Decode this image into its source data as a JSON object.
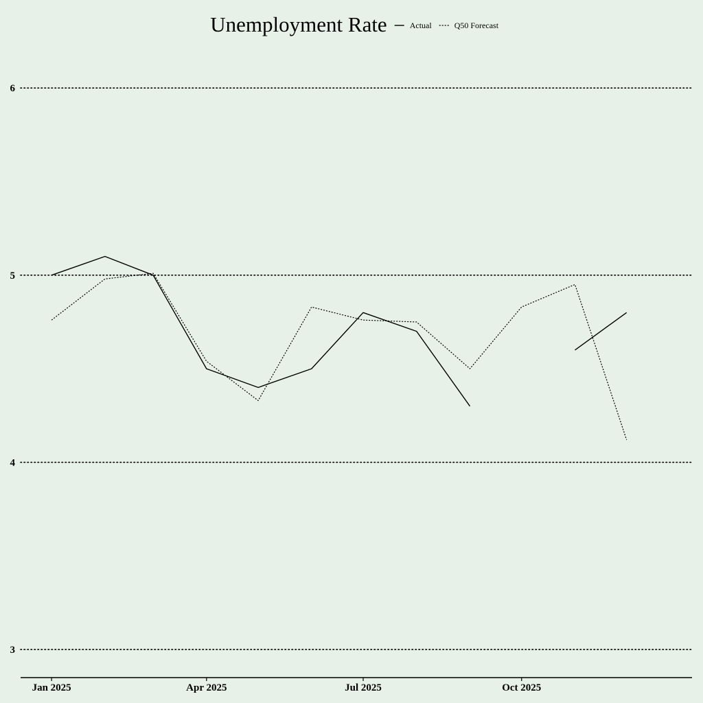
{
  "chart_data": {
    "type": "line",
    "title": "Unemployment Rate",
    "xlabel": "",
    "ylabel": "",
    "ylim": [
      2.85,
      6.25
    ],
    "xlim": [
      "2024-12-14",
      "2026-01-08"
    ],
    "yticks": [
      3,
      4,
      5,
      6
    ],
    "xticks": [
      {
        "value": "2025-01-01",
        "label": "Jan 2025"
      },
      {
        "value": "2025-04-01",
        "label": "Apr 2025"
      },
      {
        "value": "2025-07-01",
        "label": "Jul 2025"
      },
      {
        "value": "2025-10-01",
        "label": "Oct 2025"
      }
    ],
    "grid": "horizontal dotted",
    "legend_position": "top, beside title",
    "series": [
      {
        "name": "Actual",
        "style": "solid",
        "color": "#000000",
        "x": [
          "2025-01-01",
          "2025-02-01",
          "2025-03-01",
          "2025-04-01",
          "2025-05-01",
          "2025-06-01",
          "2025-07-01",
          "2025-08-01",
          "2025-09-01",
          "2025-10-01",
          "2025-11-01",
          "2025-12-01"
        ],
        "values": [
          5.0,
          5.1,
          5.0,
          4.5,
          4.4,
          4.5,
          4.8,
          4.7,
          4.3,
          null,
          4.6,
          4.8
        ]
      },
      {
        "name": "Q50 Forecast",
        "style": "dotted",
        "color": "#000000",
        "x": [
          "2025-01-01",
          "2025-02-01",
          "2025-03-01",
          "2025-04-01",
          "2025-05-01",
          "2025-06-01",
          "2025-07-01",
          "2025-08-01",
          "2025-09-01",
          "2025-10-01",
          "2025-11-01",
          "2025-12-01"
        ],
        "values": [
          4.76,
          4.98,
          5.01,
          4.54,
          4.33,
          4.83,
          4.76,
          4.75,
          4.5,
          4.83,
          4.95,
          4.12
        ]
      }
    ]
  }
}
